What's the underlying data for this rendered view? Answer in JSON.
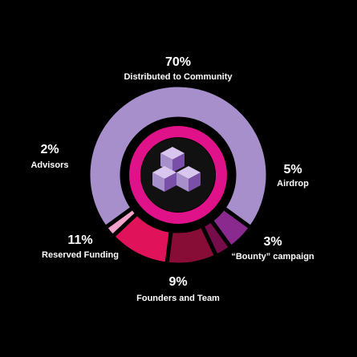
{
  "chart_data": {
    "type": "pie",
    "categories": [
      "Distributed to Community",
      "Airdrop",
      "“Bounty” campaign",
      "Founders and Team",
      "Reserved Funding",
      "Advisors"
    ],
    "values": [
      70,
      5,
      3,
      9,
      11,
      2
    ],
    "value_labels": [
      "70%",
      "5%",
      "3%",
      "9%",
      "11%",
      "2%"
    ],
    "colors": [
      "#a78fcb",
      "#8a2a8e",
      "#760c4a",
      "#880d36",
      "#e0125a",
      "#f3a3c9"
    ]
  }
}
